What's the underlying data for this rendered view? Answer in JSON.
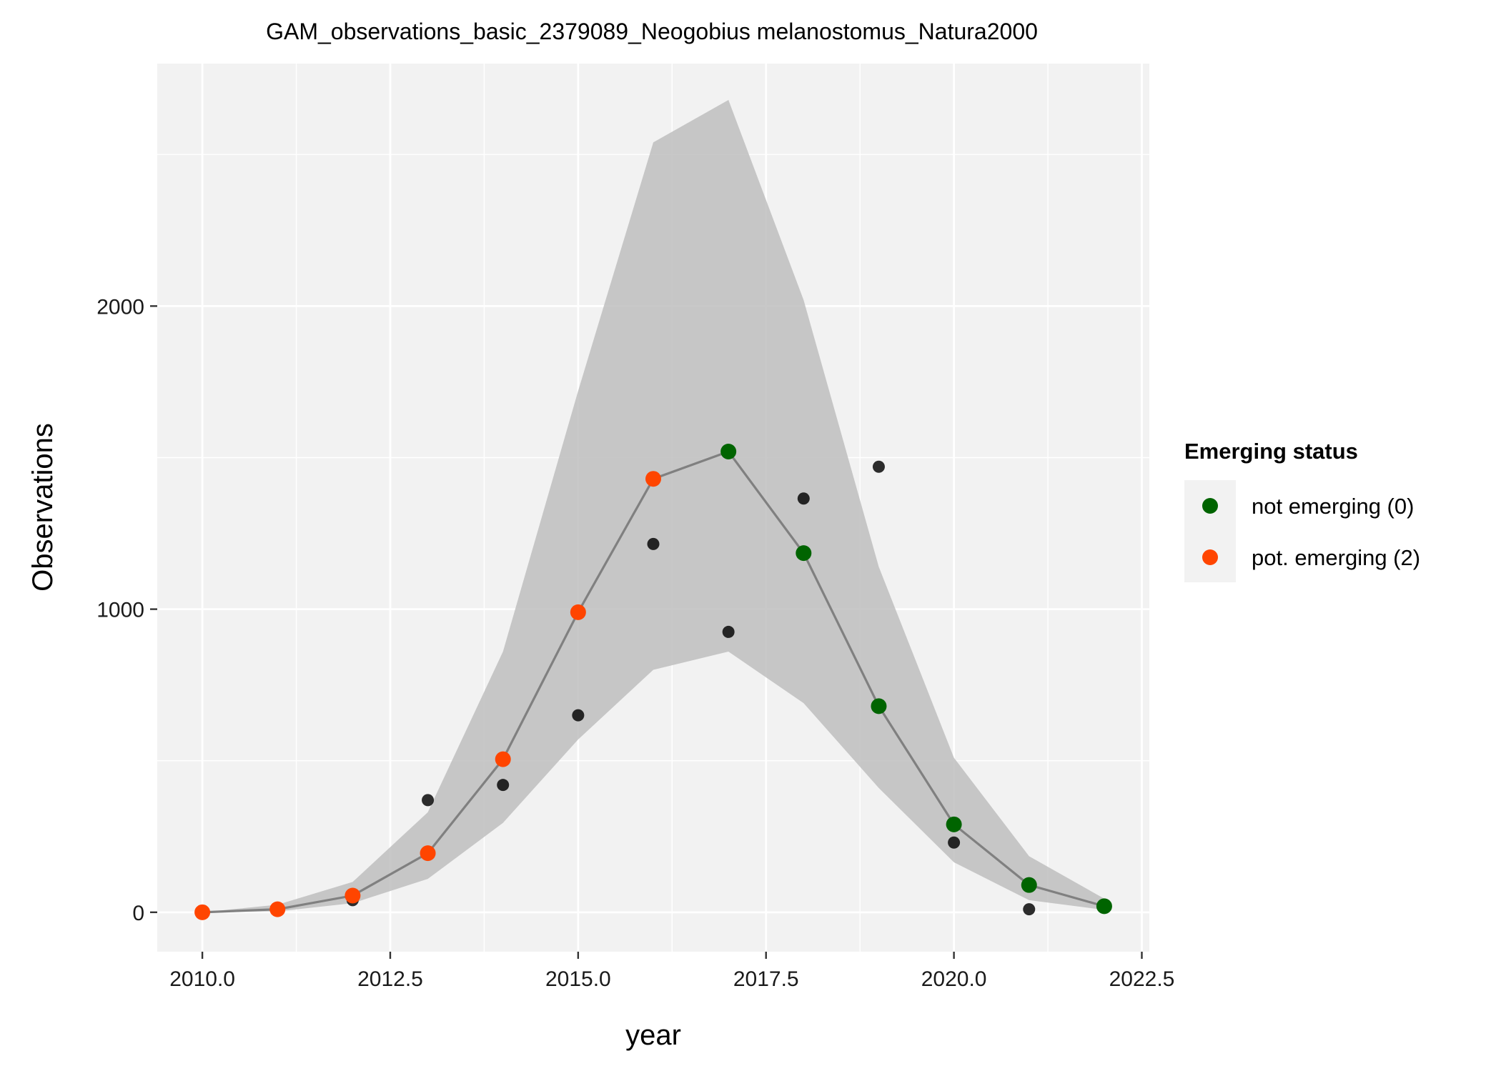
{
  "chart_data": {
    "type": "scatter",
    "title": "GAM_observations_basic_2379089_Neogobius melanostomus_Natura2000",
    "xlabel": "year",
    "ylabel": "Observations",
    "xlim": [
      2009.4,
      2022.6
    ],
    "ylim": [
      -130,
      2800
    ],
    "x_ticks": [
      2010.0,
      2012.5,
      2015.0,
      2017.5,
      2020.0,
      2022.5
    ],
    "x_tick_labels": [
      "2010.0",
      "2012.5",
      "2015.0",
      "2017.5",
      "2020.0",
      "2022.5"
    ],
    "y_ticks": [
      0,
      1000,
      2000
    ],
    "y_tick_labels": [
      "0",
      "1000",
      "2000"
    ],
    "grid": true,
    "legend": {
      "title": "Emerging status",
      "placement": "right",
      "entries": [
        {
          "label": "not emerging (0)",
          "color": "#006400"
        },
        {
          "label": "pot. emerging (2)",
          "color": "#FF4500"
        }
      ]
    },
    "observed": {
      "x": [
        2010,
        2011,
        2012,
        2013,
        2014,
        2015,
        2016,
        2017,
        2018,
        2019,
        2020,
        2021,
        2022
      ],
      "y": [
        0,
        5,
        40,
        370,
        420,
        650,
        1215,
        925,
        1365,
        1470,
        230,
        10,
        25
      ],
      "color": "#000000"
    },
    "fit": {
      "x": [
        2010,
        2011,
        2012,
        2013,
        2014,
        2015,
        2016,
        2017,
        2018,
        2019,
        2020,
        2021,
        2022
      ],
      "y": [
        0,
        10,
        55,
        195,
        505,
        990,
        1430,
        1520,
        1185,
        680,
        290,
        90,
        20
      ],
      "status": [
        "pot. emerging (2)",
        "pot. emerging (2)",
        "pot. emerging (2)",
        "pot. emerging (2)",
        "pot. emerging (2)",
        "pot. emerging (2)",
        "pot. emerging (2)",
        "not emerging (0)",
        "not emerging (0)",
        "not emerging (0)",
        "not emerging (0)",
        "not emerging (0)",
        "not emerging (0)"
      ],
      "lower": [
        0,
        3,
        30,
        110,
        295,
        570,
        800,
        860,
        690,
        410,
        165,
        40,
        8
      ],
      "upper": [
        0,
        25,
        100,
        330,
        860,
        1720,
        2540,
        2680,
        2020,
        1140,
        510,
        185,
        45
      ],
      "line_color": "#808080",
      "band_color": "#BEBEBE"
    }
  }
}
